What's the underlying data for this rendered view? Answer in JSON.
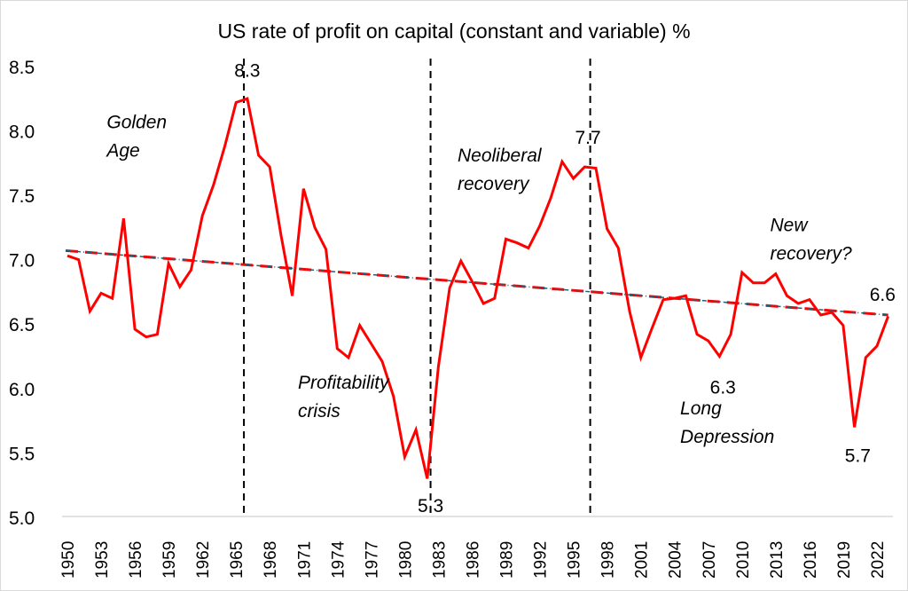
{
  "chart_data": {
    "type": "line",
    "title": "US rate of profit on capital (constant and variable) %",
    "xlabel": "",
    "ylabel": "",
    "ylim": [
      5.0,
      8.5
    ],
    "yticks": [
      "5.0",
      "5.5",
      "6.0",
      "6.5",
      "7.0",
      "7.5",
      "8.0",
      "8.5"
    ],
    "xlim": [
      1950,
      2023
    ],
    "xticks": [
      "1950",
      "1953",
      "1956",
      "1959",
      "1962",
      "1965",
      "1968",
      "1971",
      "1974",
      "1977",
      "1980",
      "1983",
      "1986",
      "1989",
      "1992",
      "1995",
      "1998",
      "2001",
      "2004",
      "2007",
      "2010",
      "2013",
      "2016",
      "2019",
      "2022"
    ],
    "grid": false,
    "legend": "none",
    "series": [
      {
        "name": "Rate of profit",
        "color": "#ff0000",
        "x": [
          1950,
          1951,
          1952,
          1953,
          1954,
          1955,
          1956,
          1957,
          1958,
          1959,
          1960,
          1961,
          1962,
          1963,
          1964,
          1965,
          1966,
          1967,
          1968,
          1969,
          1970,
          1971,
          1972,
          1973,
          1974,
          1975,
          1976,
          1977,
          1978,
          1979,
          1980,
          1981,
          1982,
          1983,
          1984,
          1985,
          1986,
          1987,
          1988,
          1989,
          1990,
          1991,
          1992,
          1993,
          1994,
          1995,
          1996,
          1997,
          1998,
          1999,
          2000,
          2001,
          2002,
          2003,
          2004,
          2005,
          2006,
          2007,
          2008,
          2009,
          2010,
          2011,
          2012,
          2013,
          2014,
          2015,
          2016,
          2017,
          2018,
          2019,
          2020,
          2021,
          2022,
          2023
        ],
        "values": [
          7.03,
          7.0,
          6.6,
          6.74,
          6.7,
          7.32,
          6.46,
          6.4,
          6.42,
          6.97,
          6.79,
          6.92,
          7.34,
          7.58,
          7.88,
          8.22,
          8.25,
          7.81,
          7.72,
          7.19,
          6.72,
          7.55,
          7.25,
          7.08,
          6.31,
          6.24,
          6.49,
          6.35,
          6.21,
          5.94,
          5.47,
          5.68,
          5.3,
          6.17,
          6.78,
          6.99,
          6.83,
          6.66,
          6.7,
          7.16,
          7.13,
          7.09,
          7.26,
          7.48,
          7.76,
          7.63,
          7.72,
          7.71,
          7.24,
          7.09,
          6.6,
          6.24,
          6.47,
          6.69,
          6.7,
          6.72,
          6.42,
          6.37,
          6.25,
          6.42,
          6.9,
          6.82,
          6.82,
          6.89,
          6.72,
          6.66,
          6.69,
          6.57,
          6.59,
          6.49,
          5.7,
          6.24,
          6.33,
          6.56
        ]
      },
      {
        "name": "Linear trend",
        "color": "#ff0000",
        "style": "dashed",
        "x": [
          1950,
          2023
        ],
        "values": [
          7.07,
          6.57
        ]
      }
    ],
    "vlines": [
      {
        "x": 1965.7
      },
      {
        "x": 1982.3
      },
      {
        "x": 1996.5
      }
    ],
    "data_labels": [
      {
        "text": "8.3",
        "x": 1966,
        "y": 8.42
      },
      {
        "text": "5.3",
        "x": 1982.3,
        "y": 5.04
      },
      {
        "text": "7.7",
        "x": 1996.3,
        "y": 7.9
      },
      {
        "text": "6.3",
        "x": 2008.3,
        "y": 5.96
      },
      {
        "text": "5.7",
        "x": 2020.3,
        "y": 5.43
      },
      {
        "text": "6.6",
        "x": 2022.5,
        "y": 6.68
      }
    ],
    "annotations": [
      {
        "lines": [
          "Golden",
          "Age"
        ],
        "x": 1953.5,
        "y": 8.02
      },
      {
        "lines": [
          "Profitability",
          "crisis"
        ],
        "x": 1970.5,
        "y": 6.0
      },
      {
        "lines": [
          "Neoliberal",
          "recovery"
        ],
        "x": 1984.7,
        "y": 7.76
      },
      {
        "lines": [
          "Long",
          "Depression"
        ],
        "x": 2004.5,
        "y": 5.8
      },
      {
        "lines": [
          "New",
          "recovery?"
        ],
        "x": 2012.5,
        "y": 7.22
      }
    ]
  }
}
